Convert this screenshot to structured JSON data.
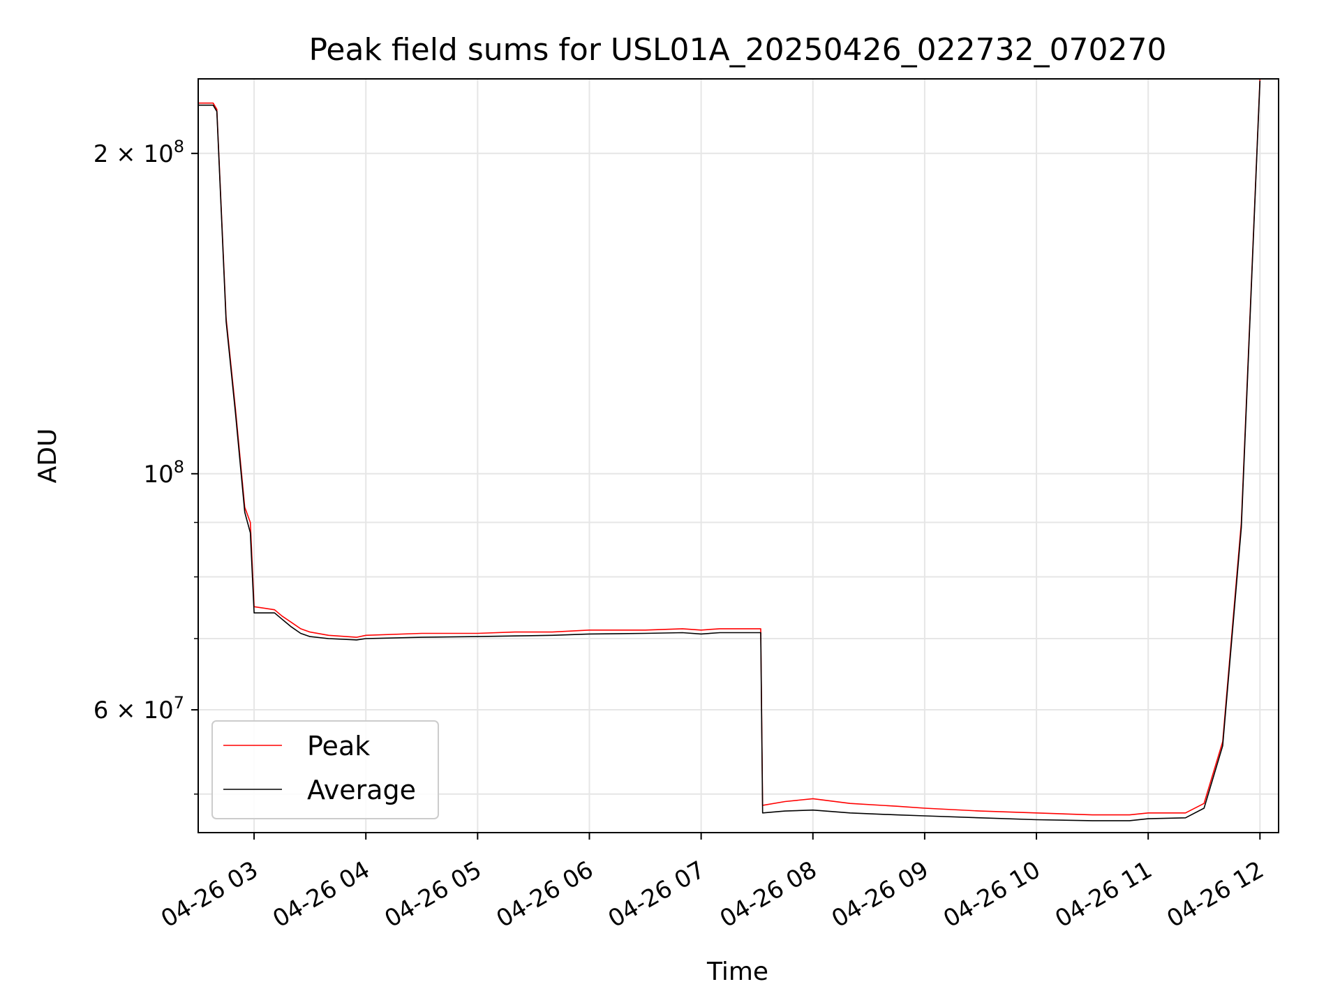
{
  "chart_data": {
    "type": "line",
    "title": "Peak field sums for USL01A_20250426_022732_070270",
    "xlabel": "Time",
    "ylabel": "ADU",
    "x_tick_labels": [
      "04-26 03",
      "04-26 04",
      "04-26 05",
      "04-26 06",
      "04-26 07",
      "04-26 08",
      "04-26 09",
      "04-26 10",
      "04-26 11",
      "04-26 12"
    ],
    "y_tick_labels": [
      {
        "value": 200000000,
        "mantissa": "2",
        "times": "×",
        "base": "10",
        "exponent": "8"
      },
      {
        "value": 100000000,
        "mantissa": "",
        "times": "",
        "base": "10",
        "exponent": "8"
      },
      {
        "value": 60000000,
        "mantissa": "6",
        "times": "×",
        "base": "10",
        "exponent": "7"
      }
    ],
    "y_scale": "log",
    "ylim": [
      46000000,
      235000000
    ],
    "xlim": [
      "2025-04-26 02:30",
      "2025-04-26 12:10"
    ],
    "grid": true,
    "legend_position": "lower-left",
    "series": [
      {
        "name": "Peak",
        "color": "#ff0000",
        "x": [
          "2025-04-26 02:30",
          "2025-04-26 02:38",
          "2025-04-26 02:40",
          "2025-04-26 02:45",
          "2025-04-26 02:50",
          "2025-04-26 02:55",
          "2025-04-26 02:58",
          "2025-04-26 03:00",
          "2025-04-26 03:11",
          "2025-04-26 03:15",
          "2025-04-26 03:20",
          "2025-04-26 03:25",
          "2025-04-26 03:30",
          "2025-04-26 03:40",
          "2025-04-26 03:55",
          "2025-04-26 04:00",
          "2025-04-26 04:30",
          "2025-04-26 05:00",
          "2025-04-26 05:20",
          "2025-04-26 05:40",
          "2025-04-26 06:00",
          "2025-04-26 06:30",
          "2025-04-26 06:50",
          "2025-04-26 07:00",
          "2025-04-26 07:10",
          "2025-04-26 07:32",
          "2025-04-26 07:33",
          "2025-04-26 07:45",
          "2025-04-26 08:00",
          "2025-04-26 08:20",
          "2025-04-26 08:45",
          "2025-04-26 09:00",
          "2025-04-26 09:30",
          "2025-04-26 10:00",
          "2025-04-26 10:30",
          "2025-04-26 10:50",
          "2025-04-26 11:00",
          "2025-04-26 11:20",
          "2025-04-26 11:30",
          "2025-04-26 11:40",
          "2025-04-26 11:50",
          "2025-04-26 12:00"
        ],
        "y": [
          223000000,
          223000000,
          220000000,
          140000000,
          115000000,
          93000000,
          90000000,
          75000000,
          74500000,
          73500000,
          72500000,
          71500000,
          71000000,
          70500000,
          70200000,
          70500000,
          70800000,
          70800000,
          71000000,
          71000000,
          71300000,
          71300000,
          71500000,
          71300000,
          71500000,
          71500000,
          48800000,
          49200000,
          49500000,
          49000000,
          48700000,
          48500000,
          48200000,
          48000000,
          47800000,
          47800000,
          48000000,
          48000000,
          49000000,
          56000000,
          90000000,
          235000000
        ]
      },
      {
        "name": "Average",
        "color": "#000000",
        "x": [
          "2025-04-26 02:30",
          "2025-04-26 02:38",
          "2025-04-26 02:40",
          "2025-04-26 02:45",
          "2025-04-26 02:50",
          "2025-04-26 02:55",
          "2025-04-26 02:58",
          "2025-04-26 03:00",
          "2025-04-26 03:11",
          "2025-04-26 03:15",
          "2025-04-26 03:20",
          "2025-04-26 03:25",
          "2025-04-26 03:30",
          "2025-04-26 03:40",
          "2025-04-26 03:55",
          "2025-04-26 04:00",
          "2025-04-26 04:30",
          "2025-04-26 05:00",
          "2025-04-26 05:20",
          "2025-04-26 05:40",
          "2025-04-26 06:00",
          "2025-04-26 06:30",
          "2025-04-26 06:50",
          "2025-04-26 07:00",
          "2025-04-26 07:10",
          "2025-04-26 07:32",
          "2025-04-26 07:33",
          "2025-04-26 07:45",
          "2025-04-26 08:00",
          "2025-04-26 08:20",
          "2025-04-26 08:45",
          "2025-04-26 09:00",
          "2025-04-26 09:30",
          "2025-04-26 10:00",
          "2025-04-26 10:30",
          "2025-04-26 10:50",
          "2025-04-26 11:00",
          "2025-04-26 11:20",
          "2025-04-26 11:30",
          "2025-04-26 11:40",
          "2025-04-26 11:50",
          "2025-04-26 12:00"
        ],
        "y": [
          222000000,
          222000000,
          219000000,
          139000000,
          114000000,
          92000000,
          88000000,
          74000000,
          74000000,
          73000000,
          71800000,
          70800000,
          70300000,
          70000000,
          69800000,
          70000000,
          70200000,
          70300000,
          70400000,
          70500000,
          70700000,
          70800000,
          70900000,
          70700000,
          70900000,
          70900000,
          48000000,
          48200000,
          48300000,
          48000000,
          47800000,
          47700000,
          47500000,
          47300000,
          47200000,
          47200000,
          47400000,
          47500000,
          48500000,
          55500000,
          89000000,
          234000000
        ]
      }
    ]
  }
}
